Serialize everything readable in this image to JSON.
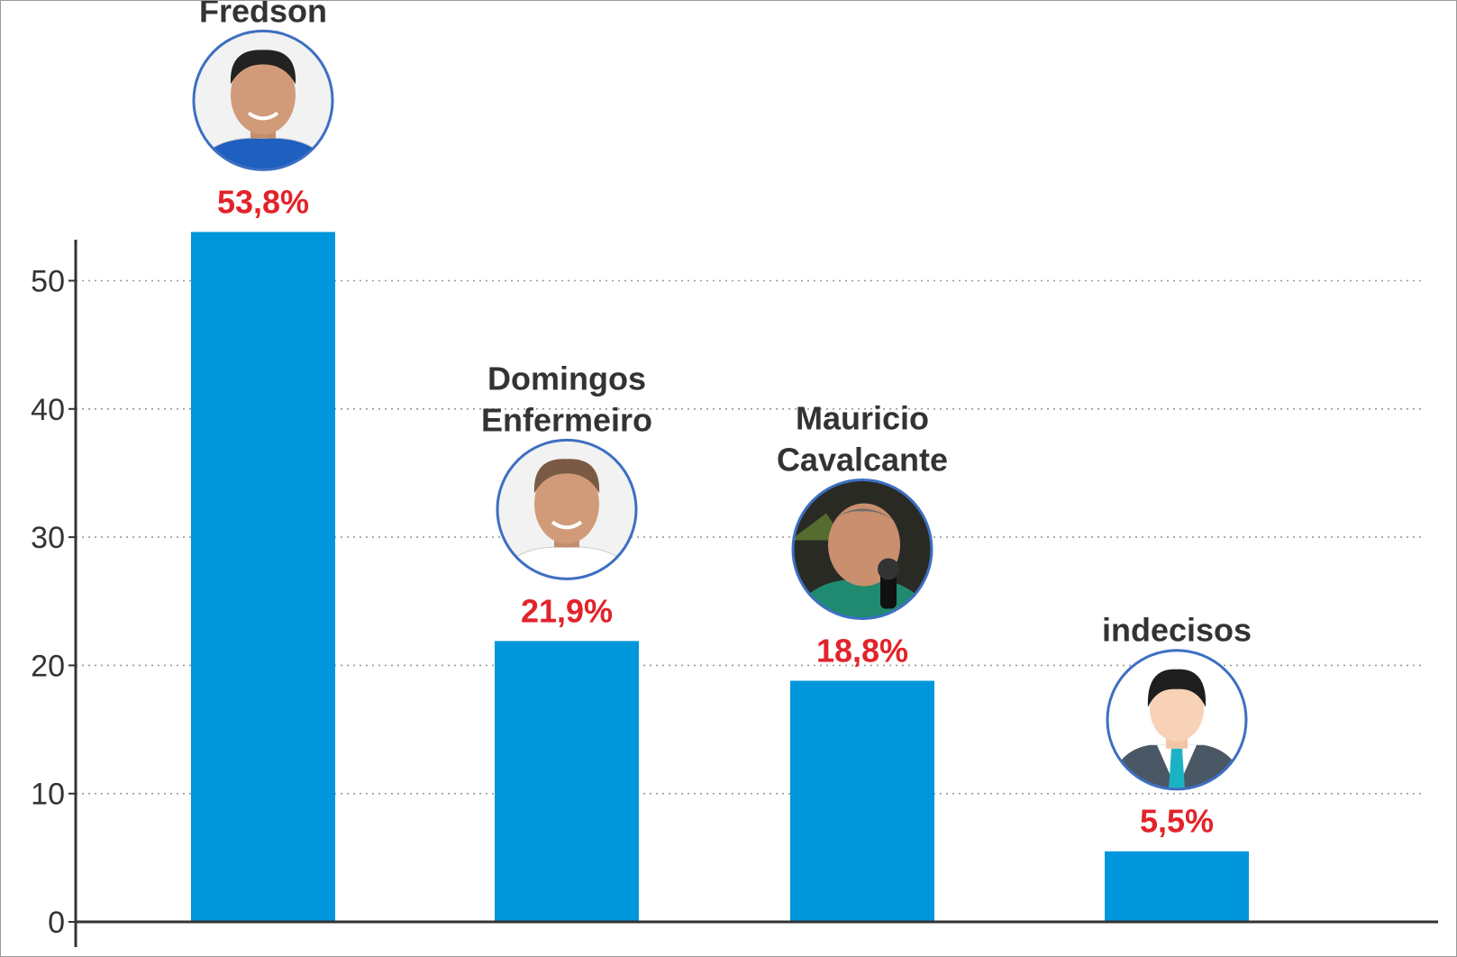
{
  "chart_data": {
    "type": "bar",
    "title": "",
    "xlabel": "",
    "ylabel": "",
    "ylim": [
      0,
      53
    ],
    "yticks": [
      0,
      10,
      20,
      30,
      40,
      50
    ],
    "grid": "horizontal-dotted",
    "bar_color": "#0096dc",
    "label_color": "#e2232a",
    "categories": [
      "Fredson",
      "Domingos Enfermeiro",
      "Mauricio Cavalcante",
      "indecisos"
    ],
    "name_lines": [
      [
        "Fredson"
      ],
      [
        "Domingos",
        "Enfermeiro"
      ],
      [
        "Mauricio",
        "Cavalcante"
      ],
      [
        "indecisos"
      ]
    ],
    "values": [
      53.8,
      21.9,
      18.8,
      5.5
    ],
    "value_labels": [
      "53,8%",
      "21,9%",
      "18,8%",
      "5,5%"
    ],
    "avatars": [
      "man-portrait-icon",
      "man-portrait-icon",
      "man-with-microphone-icon",
      "generic-person-icon"
    ]
  }
}
